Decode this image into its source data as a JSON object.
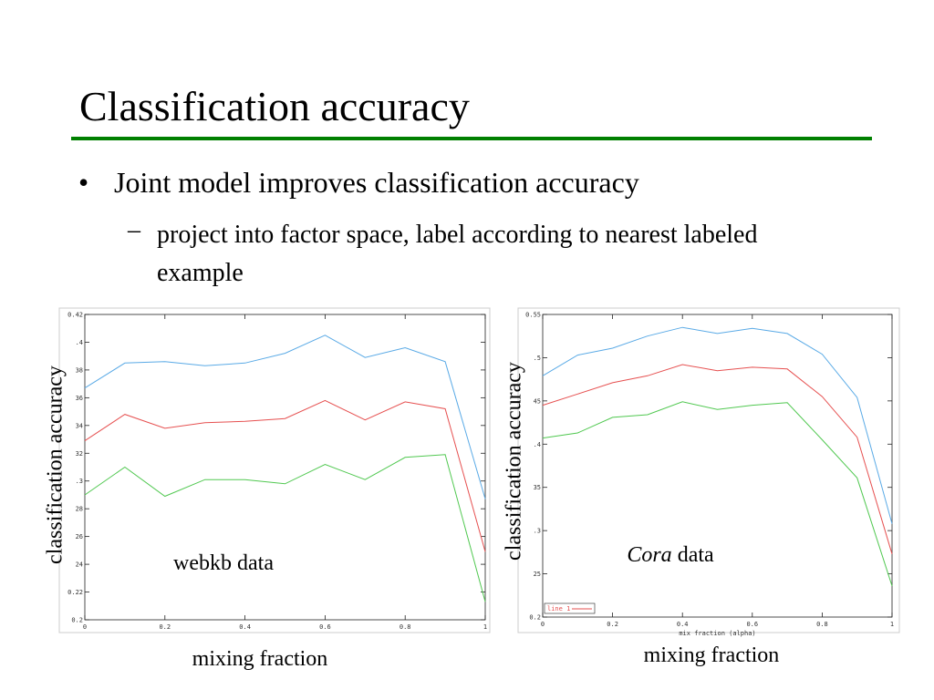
{
  "title": "Classification accuracy",
  "bullets": [
    {
      "text": "Joint model improves classification accuracy",
      "sub": [
        "project into factor space, label according to nearest labeled example"
      ]
    }
  ],
  "chart_data": [
    {
      "type": "line",
      "ylabel": "classification accuracy",
      "xlabel": "mixing fraction",
      "annotation": "webkb data",
      "x": [
        0,
        0.1,
        0.2,
        0.3,
        0.4,
        0.5,
        0.6,
        0.7,
        0.8,
        0.9,
        1
      ],
      "xlim": [
        0,
        1
      ],
      "xticks": [
        0,
        0.2,
        0.4,
        0.6,
        0.8,
        1
      ],
      "ylim": [
        0.2,
        0.42
      ],
      "yticks": [
        0.2,
        {
          "value": 0.22,
          "label": "0.22"
        },
        {
          "value": 0.24,
          "label": "24"
        },
        {
          "value": 0.26,
          "label": "26"
        },
        {
          "value": 0.28,
          "label": "28"
        },
        {
          "value": 0.3,
          "label": ".3"
        },
        {
          "value": 0.32,
          "label": "32"
        },
        {
          "value": 0.34,
          "label": "34"
        },
        {
          "value": 0.36,
          "label": "36"
        },
        {
          "value": 0.38,
          "label": "38"
        },
        {
          "value": 0.4,
          "label": ".4"
        },
        0.42
      ],
      "grid": false,
      "series": [
        {
          "color": "#5aaae6",
          "values": [
            0.367,
            0.385,
            0.386,
            0.383,
            0.385,
            0.392,
            0.405,
            0.389,
            0.396,
            0.386,
            0.287
          ]
        },
        {
          "color": "#e65050",
          "values": [
            0.329,
            0.348,
            0.338,
            0.342,
            0.343,
            0.345,
            0.358,
            0.344,
            0.357,
            0.352,
            0.249
          ]
        },
        {
          "color": "#50c850",
          "values": [
            0.29,
            0.31,
            0.289,
            0.301,
            0.301,
            0.298,
            0.312,
            0.301,
            0.317,
            0.319,
            0.213
          ]
        }
      ]
    },
    {
      "type": "line",
      "ylabel": "classification accuracy",
      "xlabel": "mixing fraction",
      "inner_xlabel": "mix fraction (alpha)",
      "annotation_italic": "Cora",
      "annotation": "data",
      "legend": "lower left",
      "x": [
        0,
        0.1,
        0.2,
        0.3,
        0.4,
        0.5,
        0.6,
        0.7,
        0.8,
        0.9,
        1
      ],
      "xlim": [
        0,
        1
      ],
      "xticks": [
        0,
        0.2,
        0.4,
        0.6,
        0.8,
        1
      ],
      "ylim": [
        0.2,
        0.55
      ],
      "yticks": [
        0.2,
        {
          "value": 0.25,
          "label": "25"
        },
        {
          "value": 0.3,
          "label": ".3"
        },
        {
          "value": 0.35,
          "label": "35"
        },
        {
          "value": 0.4,
          "label": ".4"
        },
        {
          "value": 0.45,
          "label": "45"
        },
        {
          "value": 0.5,
          "label": ".5"
        },
        0.55
      ],
      "grid": false,
      "series": [
        {
          "color": "#5aaae6",
          "values": [
            0.479,
            0.503,
            0.511,
            0.525,
            0.535,
            0.528,
            0.534,
            0.528,
            0.504,
            0.454,
            0.308
          ]
        },
        {
          "name": "line 1",
          "color": "#e65050",
          "values": [
            0.445,
            0.458,
            0.471,
            0.479,
            0.492,
            0.485,
            0.489,
            0.487,
            0.455,
            0.408,
            0.273
          ]
        },
        {
          "color": "#50c850",
          "values": [
            0.407,
            0.413,
            0.431,
            0.434,
            0.449,
            0.44,
            0.445,
            0.448,
            0.405,
            0.361,
            0.236
          ]
        }
      ]
    }
  ]
}
